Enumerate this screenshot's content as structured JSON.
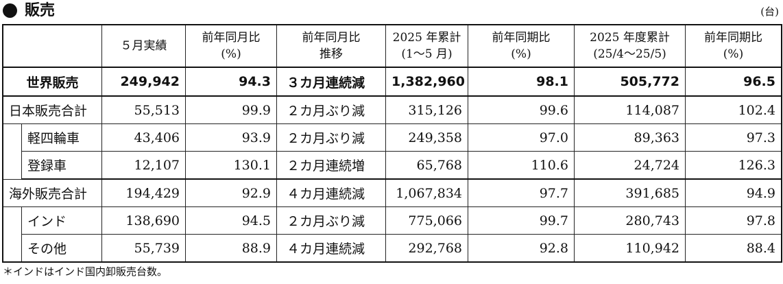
{
  "header": {
    "title": "販売",
    "unit": "(台)"
  },
  "columns": [
    "",
    "５月実績",
    "前年同月比\n(%)",
    "前年同月比\n推移",
    "2025 年累計\n(1～5 月)",
    "前年同期比\n(%)",
    "2025 年度累計\n(25/4～25/5)",
    "前年同期比\n(%)"
  ],
  "rows": [
    {
      "label": "世界販売",
      "values": [
        "249,942",
        "94.3",
        "３カ月連続減",
        "1,382,960",
        "98.1",
        "505,772",
        "96.5"
      ]
    },
    {
      "label": "日本販売合計",
      "values": [
        "55,513",
        "99.9",
        "２カ月ぶり減",
        "315,126",
        "99.6",
        "114,087",
        "102.4"
      ]
    },
    {
      "label": "軽四輪車",
      "values": [
        "43,406",
        "93.9",
        "２カ月ぶり減",
        "249,358",
        "97.0",
        "89,363",
        "97.3"
      ]
    },
    {
      "label": "登録車",
      "values": [
        "12,107",
        "130.1",
        "２カ月連続増",
        "65,768",
        "110.6",
        "24,724",
        "126.3"
      ]
    },
    {
      "label": "海外販売合計",
      "values": [
        "194,429",
        "92.9",
        "４カ月連続減",
        "1,067,834",
        "97.7",
        "391,685",
        "94.9"
      ]
    },
    {
      "label": "インド",
      "values": [
        "138,690",
        "94.5",
        "２カ月ぶり減",
        "775,066",
        "99.7",
        "280,743",
        "97.8"
      ]
    },
    {
      "label": "その他",
      "values": [
        "55,739",
        "88.9",
        "４カ月連続減",
        "292,768",
        "92.8",
        "110,942",
        "88.4"
      ]
    }
  ],
  "footnote": "＊インドはインド国内卸販売台数。"
}
